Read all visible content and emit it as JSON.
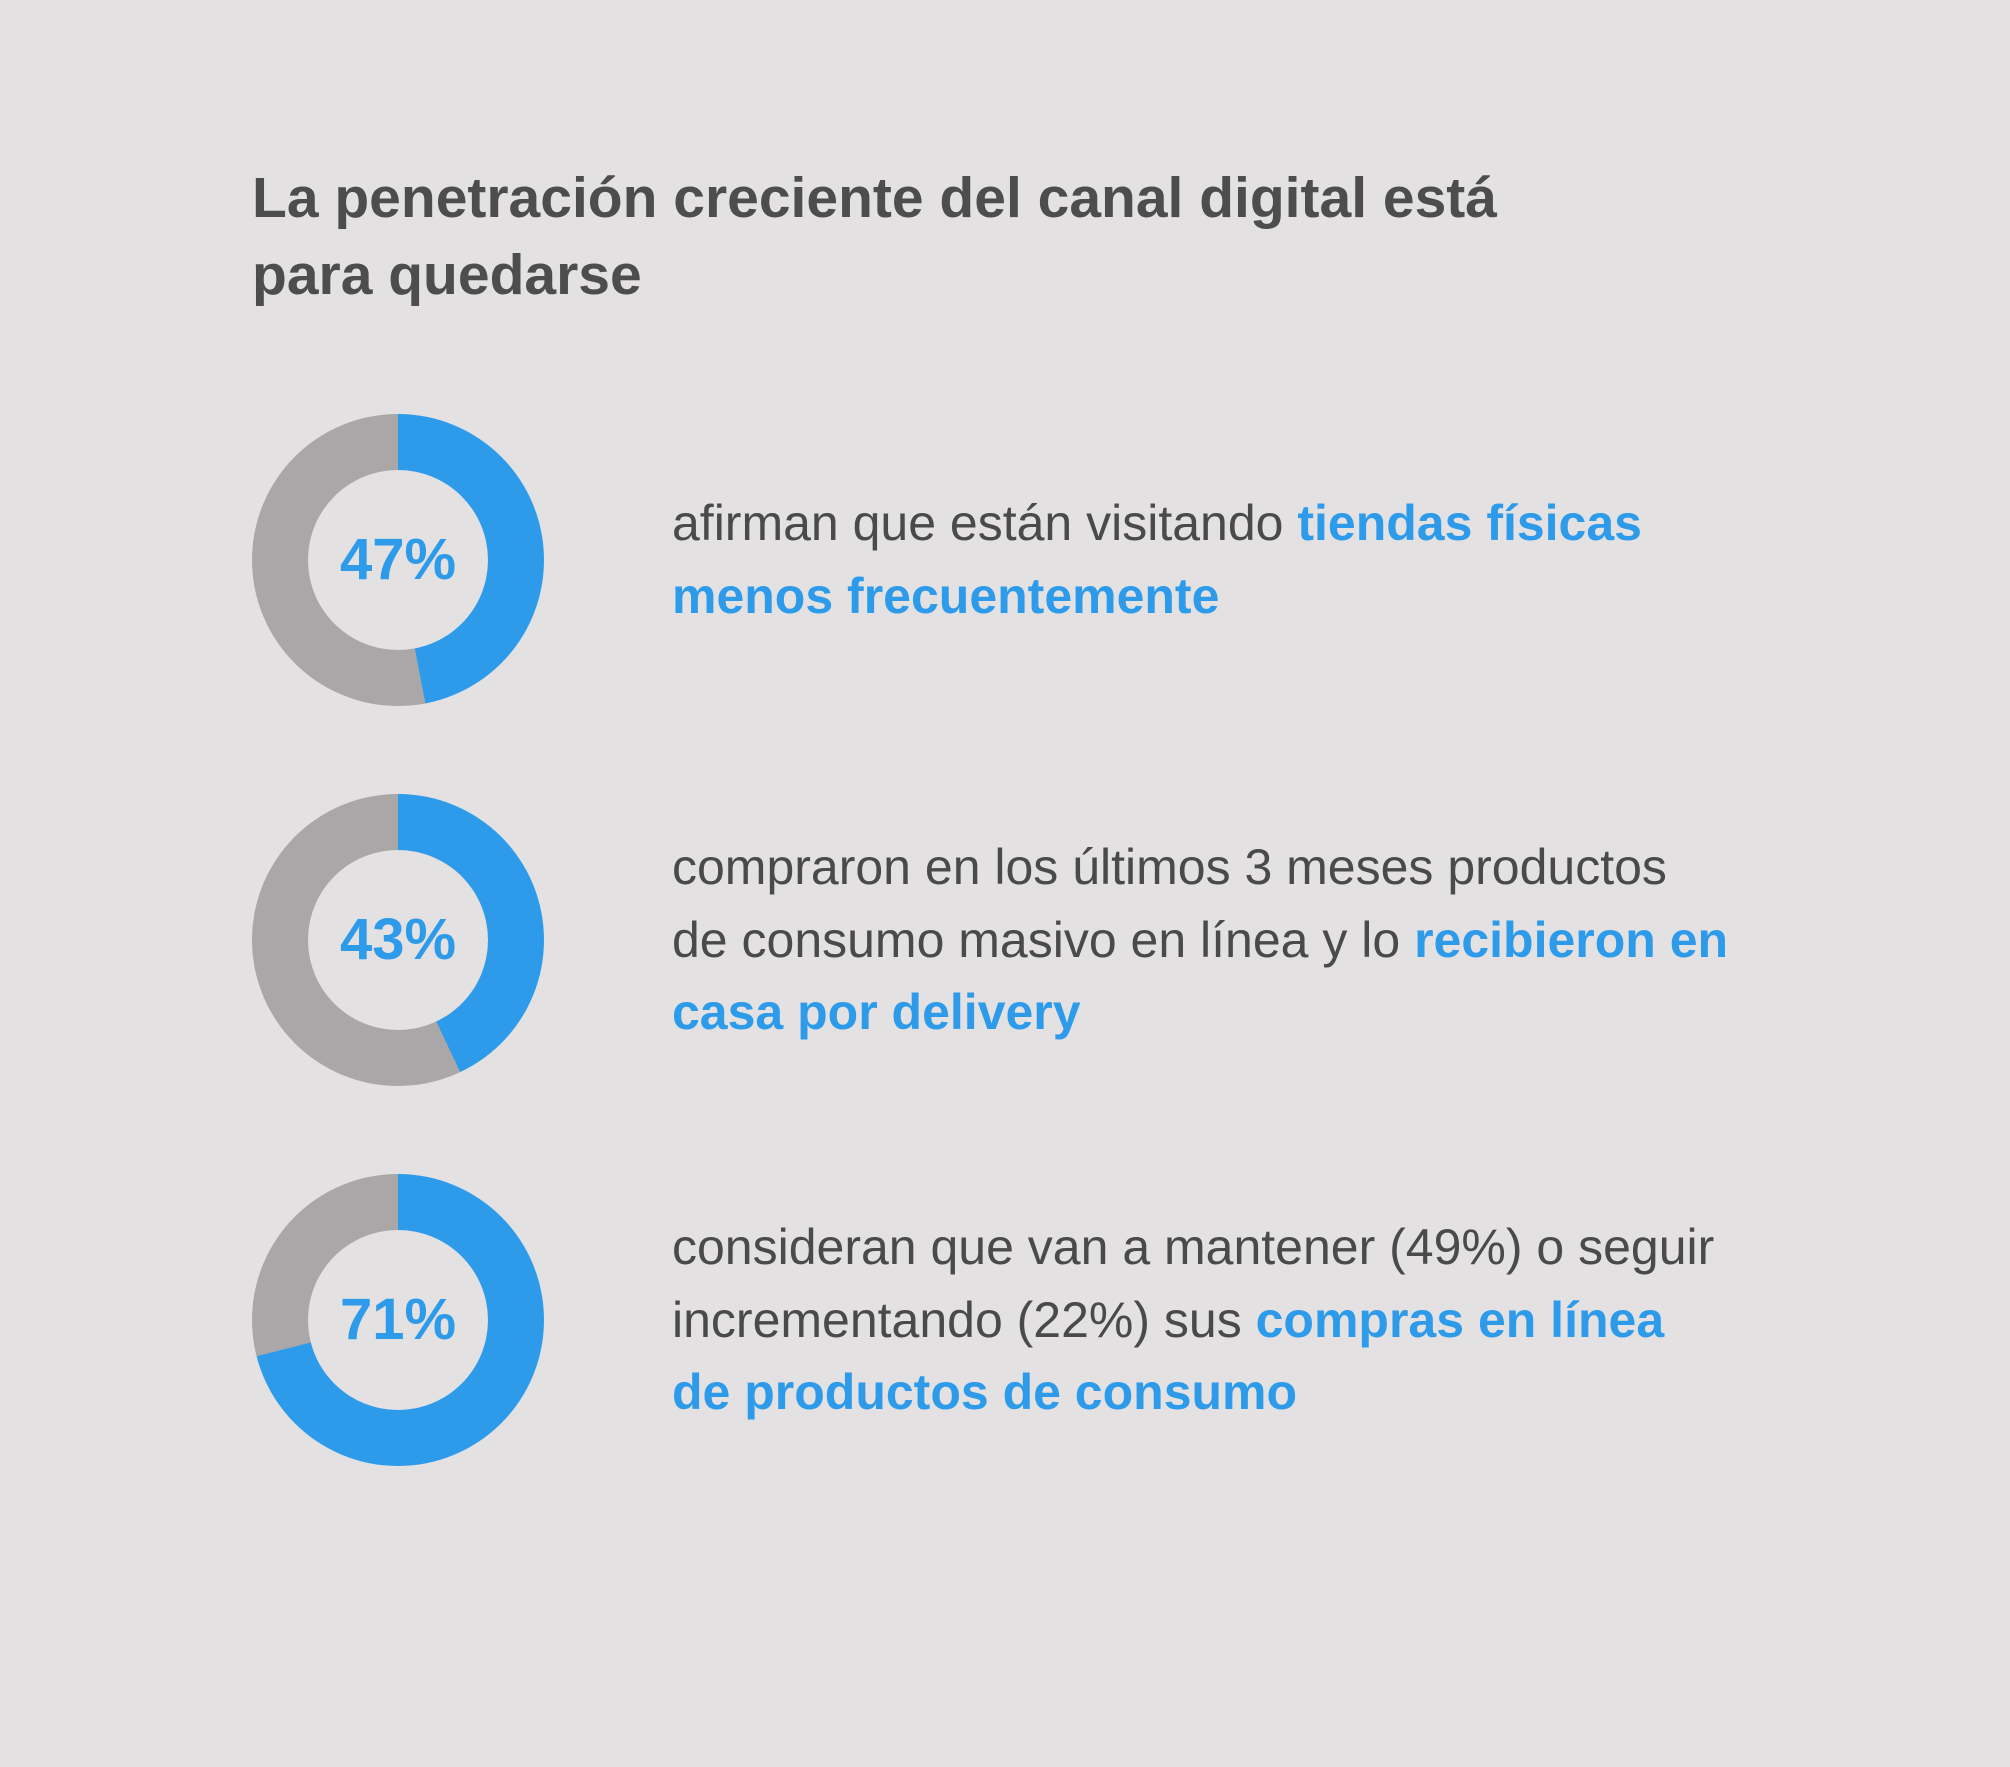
{
  "colors": {
    "accent": "#2E9BEA",
    "ring_remainder": "#A9A7A7",
    "background": "#E3E1E1",
    "text": "#4A4A4A"
  },
  "header": {
    "title": "La penetración creciente del canal digital está para quedarse"
  },
  "rows": [
    {
      "percent": 47,
      "percent_label": "47%",
      "segments": {
        "normal": "afirman que están visitando ",
        "accent": "tiendas físicas menos frecuentemente"
      }
    },
    {
      "percent": 43,
      "percent_label": "43%",
      "segments": {
        "normal": "compraron en los últimos 3 meses productos de consumo masivo en línea y lo ",
        "accent": "recibieron en casa por delivery"
      }
    },
    {
      "percent": 71,
      "percent_label": "71%",
      "segments": {
        "normal": "consideran que van a mantener (49%) o seguir incrementando (22%) sus ",
        "accent": "compras en línea de productos de consumo"
      }
    }
  ],
  "chart_data": [
    {
      "type": "pie",
      "subtype": "donut",
      "label": "47%",
      "values": [
        47,
        53
      ],
      "slice_colors": [
        "#2E9BEA",
        "#A9A7A7"
      ],
      "caption": "afirman que están visitando tiendas físicas menos frecuentemente"
    },
    {
      "type": "pie",
      "subtype": "donut",
      "label": "43%",
      "values": [
        43,
        57
      ],
      "slice_colors": [
        "#2E9BEA",
        "#A9A7A7"
      ],
      "caption": "compraron en los últimos 3 meses productos de consumo masivo en línea y lo recibieron en casa por delivery"
    },
    {
      "type": "pie",
      "subtype": "donut",
      "label": "71%",
      "values": [
        71,
        29
      ],
      "slice_colors": [
        "#2E9BEA",
        "#A9A7A7"
      ],
      "caption": "consideran que van a mantener (49%) o seguir incrementando (22%) sus compras en línea de productos de consumo"
    }
  ]
}
